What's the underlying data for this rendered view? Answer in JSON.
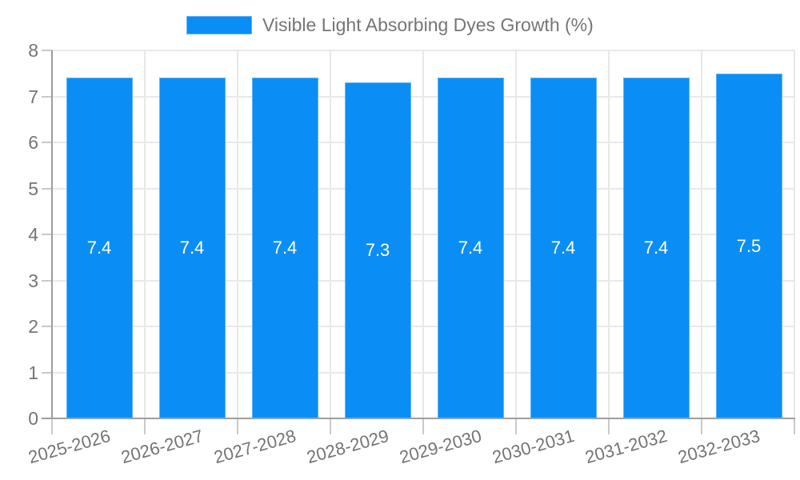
{
  "chart_data": {
    "type": "bar",
    "title": "Visible Light Absorbing Dyes Growth (%)",
    "categories": [
      "2025-2026",
      "2026-2027",
      "2027-2028",
      "2028-2029",
      "2029-2030",
      "2030-2031",
      "2031-2032",
      "2032-2033"
    ],
    "values": [
      7.4,
      7.4,
      7.4,
      7.3,
      7.4,
      7.4,
      7.4,
      7.5
    ],
    "value_labels": [
      "7.4",
      "7.4",
      "7.4",
      "7.3",
      "7.4",
      "7.4",
      "7.4",
      "7.5"
    ],
    "xlabel": "",
    "ylabel": "",
    "ylim": [
      0,
      8
    ],
    "ytick_labels": [
      "0",
      "1",
      "2",
      "3",
      "4",
      "5",
      "6",
      "7",
      "8"
    ],
    "grid": "on",
    "legend_position": "top",
    "colors": {
      "bar_fill": "#0a8ef5",
      "bar_border": "#5fb4f8",
      "gridline": "#e8e8e8",
      "axis_line": "#9e9e9e",
      "tick_mark": "#c9c9c9",
      "axis_text": "#757575",
      "value_text": "#ffffff",
      "background": "#ffffff"
    }
  }
}
